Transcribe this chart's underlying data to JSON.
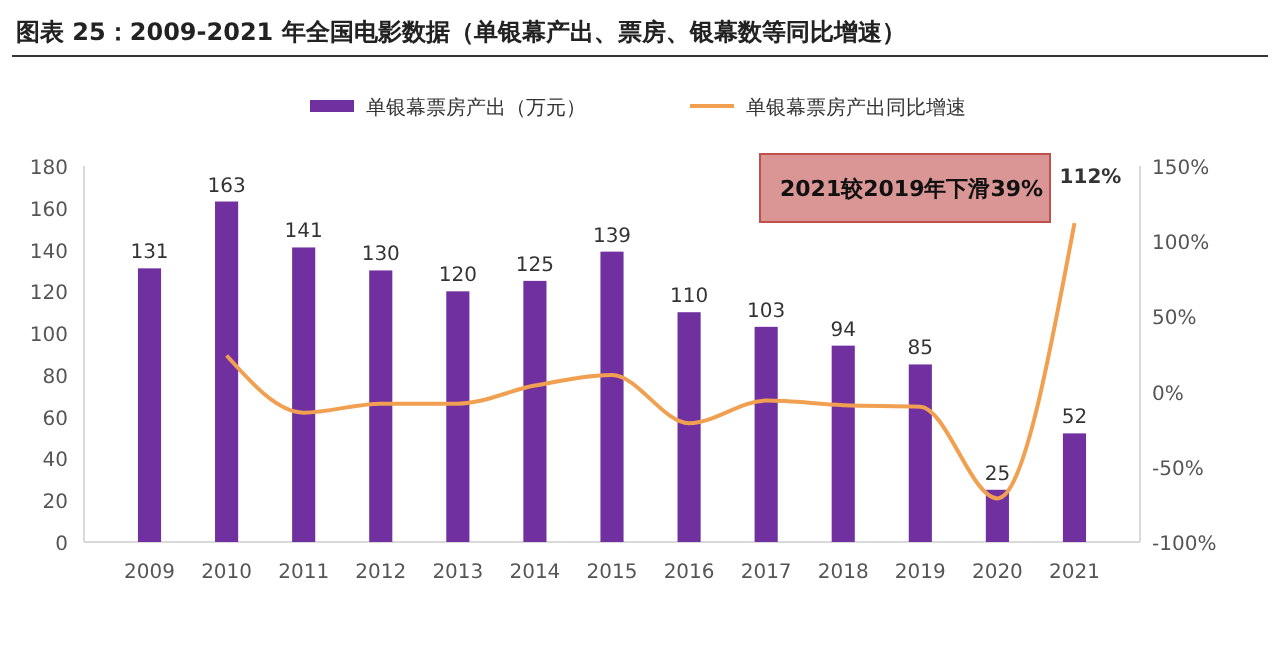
{
  "chart_data": {
    "type": "bar",
    "title": "图表 25：2009-2021 年全国电影数据（单银幕产出、票房、银幕数等同比增速）",
    "categories": [
      "2009",
      "2010",
      "2011",
      "2012",
      "2013",
      "2014",
      "2015",
      "2016",
      "2017",
      "2018",
      "2019",
      "2020",
      "2021"
    ],
    "series": [
      {
        "name": "单银幕票房产出（万元）",
        "color": "#7030a0",
        "values": [
          131,
          163,
          141,
          130,
          120,
          125,
          139,
          110,
          103,
          94,
          85,
          25,
          52
        ]
      },
      {
        "name": "单银幕票房产出同比增速",
        "type": "line",
        "axis": "y2",
        "color": "#f0a050",
        "values": [
          null,
          24,
          -14,
          -8,
          -8,
          4,
          11,
          -21,
          -6,
          -9,
          -10,
          -71,
          112
        ],
        "value_labels": [
          null,
          null,
          null,
          null,
          null,
          null,
          null,
          null,
          null,
          null,
          null,
          null,
          "112%"
        ]
      }
    ],
    "data_labels": true,
    "ylim": [
      0,
      180
    ],
    "yticks": [
      0,
      20,
      40,
      60,
      80,
      100,
      120,
      140,
      160,
      180
    ],
    "y2lim": [
      -100,
      150
    ],
    "y2ticks": [
      {
        "value": -100,
        "label": "-100%"
      },
      {
        "value": -50,
        "label": "-50%"
      },
      {
        "value": 0,
        "label": "0%"
      },
      {
        "value": 50,
        "label": "50%"
      },
      {
        "value": 100,
        "label": "100%"
      },
      {
        "value": 150,
        "label": "150%"
      }
    ],
    "legend": "top",
    "annotations": [
      "2021较2019年下滑39%"
    ]
  }
}
